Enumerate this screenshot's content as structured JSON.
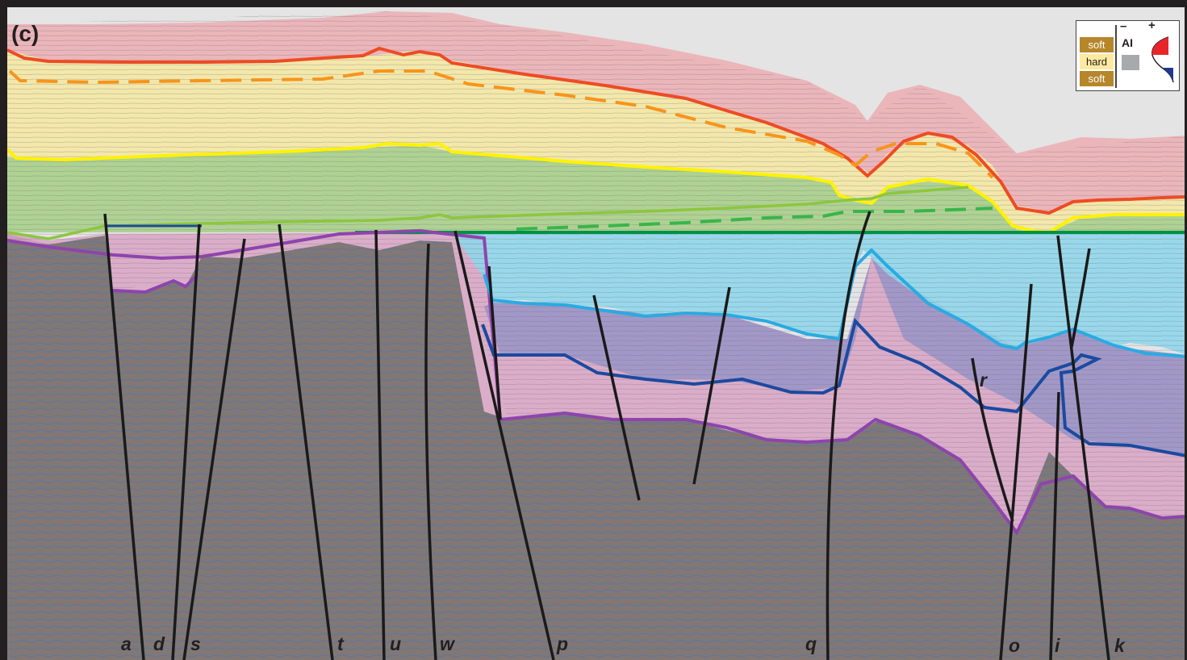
{
  "figure": {
    "panel_label": "(c)"
  },
  "legend": {
    "rows": [
      "soft",
      "hard",
      "soft"
    ],
    "sign_minus": "–",
    "sign_plus": "+",
    "ai_label": "AI",
    "colors": {
      "soft": "#b6862b",
      "hard": "#fde9a0",
      "positive": "#e8252b",
      "negative": "#1f3a93"
    }
  },
  "faults": {
    "labels": [
      "a",
      "d",
      "s",
      "t",
      "u",
      "w",
      "p",
      "q",
      "o",
      "i",
      "k",
      "r"
    ]
  },
  "colors": {
    "seafloor_unit": "#e8a6ad",
    "upper_unit": "#f3e9a3",
    "middle_unit": "#a9d08e",
    "blue_unit": "#8fd3e6",
    "pink_lower_unit": "#d8a6c8",
    "basement": "#7f7a78",
    "horizon_red": "#ee4b25",
    "horizon_orange_dashed": "#f7941d",
    "horizon_yellow": "#fff200",
    "horizon_green": "#8dc63f",
    "horizon_green_dashed": "#39b54a",
    "horizon_darkgreen": "#009245",
    "horizon_navy": "#1b4aa0",
    "horizon_cyan": "#29abe2",
    "horizon_purple": "#8e44ad",
    "fault": "#1a1a1a"
  }
}
